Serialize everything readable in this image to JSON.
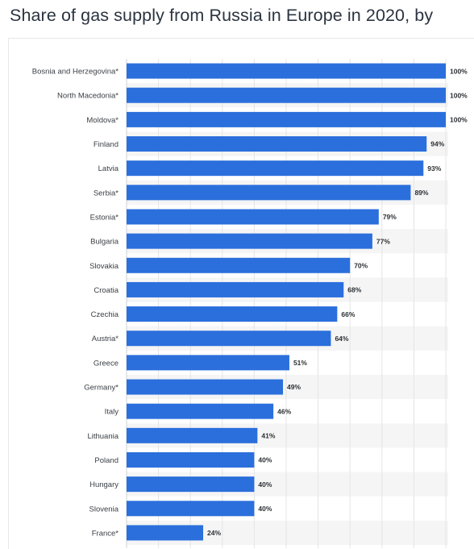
{
  "title": "Share of gas supply from Russia in Europe in 2020, by",
  "colors": {
    "bar": "#2b6fdc",
    "stripe": "#f5f5f5",
    "grid": "#e4e4e4"
  },
  "chart_data": {
    "type": "bar",
    "orientation": "horizontal",
    "title": "Share of gas supply from Russia in Europe in 2020, by",
    "xlabel": "",
    "ylabel": "",
    "xlim": [
      0,
      100
    ],
    "grid": true,
    "categories": [
      "Bosnia and Herzegovina*",
      "North Macedonia*",
      "Moldova*",
      "Finland",
      "Latvia",
      "Serbia*",
      "Estonia*",
      "Bulgaria",
      "Slovakia",
      "Croatia",
      "Czechia",
      "Austria*",
      "Greece",
      "Germany*",
      "Italy",
      "Lithuania",
      "Poland",
      "Hungary",
      "Slovenia",
      "France*"
    ],
    "values": [
      100,
      100,
      100,
      94,
      93,
      89,
      79,
      77,
      70,
      68,
      66,
      64,
      51,
      49,
      46,
      41,
      40,
      40,
      40,
      24
    ],
    "value_labels": [
      "100%",
      "100%",
      "100%",
      "94%",
      "93%",
      "89%",
      "79%",
      "77%",
      "70%",
      "68%",
      "66%",
      "64%",
      "51%",
      "49%",
      "46%",
      "41%",
      "40%",
      "40%",
      "40%",
      "24%"
    ]
  }
}
